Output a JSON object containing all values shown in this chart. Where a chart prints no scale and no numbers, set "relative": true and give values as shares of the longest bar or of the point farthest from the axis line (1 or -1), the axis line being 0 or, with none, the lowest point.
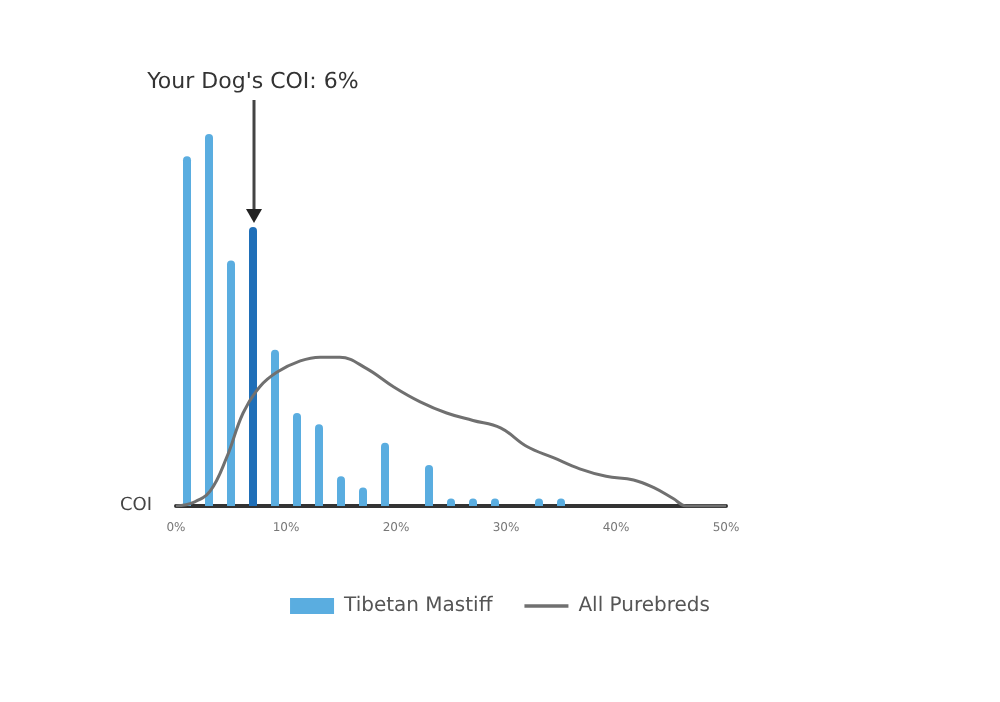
{
  "chart_data": {
    "type": "bar",
    "relative": true,
    "xlabel": "COI",
    "xlim": [
      0,
      50
    ],
    "xticks": [
      {
        "value": 0,
        "label": "0%"
      },
      {
        "value": 10,
        "label": "10%"
      },
      {
        "value": 20,
        "label": "20%"
      },
      {
        "value": 30,
        "label": "30%"
      },
      {
        "value": 40,
        "label": "40%"
      },
      {
        "value": 50,
        "label": "50%"
      }
    ],
    "tick_labels": "x",
    "legend": "bottom",
    "marker": "none",
    "annotations": [
      {
        "text": "Your Dog's COI: 6%",
        "x": 7,
        "y": 0.75
      }
    ],
    "series": [
      {
        "name": "Tibetan Mastiff",
        "color": "#5aade0",
        "x": [
          1,
          3,
          5,
          7,
          9,
          11,
          13,
          15,
          17,
          19,
          23,
          25,
          27,
          29,
          33,
          35
        ],
        "values": [
          0.94,
          1,
          0.66,
          0.75,
          0.42,
          0.25,
          0.22,
          0.08,
          0.05,
          0.17,
          0.11,
          0.02,
          0.02,
          0.02,
          0.02,
          0.02
        ],
        "colors": [
          "#5aade0",
          "#5aade0",
          "#5aade0",
          "#1f6fb8",
          "#5aade0",
          "#5aade0",
          "#5aade0",
          "#5aade0",
          "#5aade0",
          "#5aade0",
          "#5aade0",
          "#5aade0",
          "#5aade0",
          "#5aade0",
          "#5aade0",
          "#5aade0"
        ]
      },
      {
        "name": "All Purebreds",
        "type": "line",
        "color": "#707070",
        "x": [
          0,
          1.6,
          3.1,
          4.6,
          6.1,
          7.6,
          9.2,
          11.3,
          13.1,
          14.9,
          17.3,
          19.8,
          22.2,
          24.6,
          27,
          29.5,
          31.9,
          34.3,
          36.7,
          39.1,
          41.6,
          43.4,
          45.2,
          46.4,
          50
        ],
        "values": [
          0,
          0.01,
          0.04,
          0.13,
          0.25,
          0.32,
          0.36,
          0.39,
          0.4,
          0.4,
          0.37,
          0.32,
          0.28,
          0.25,
          0.23,
          0.21,
          0.16,
          0.13,
          0.1,
          0.08,
          0.07,
          0.05,
          0.02,
          0,
          0
        ]
      }
    ]
  }
}
